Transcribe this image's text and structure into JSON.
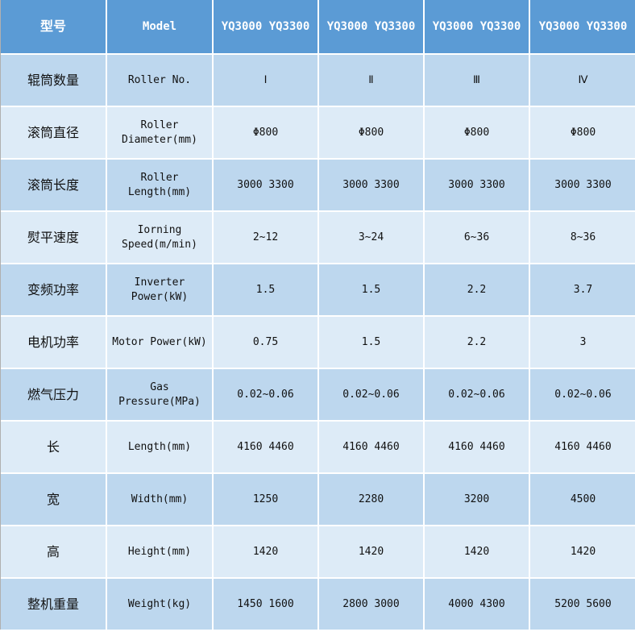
{
  "colors": {
    "header": "#5b9bd5",
    "row_dark": "#bdd7ee",
    "row_light": "#ddebf7"
  },
  "header": [
    "型号",
    "Model",
    "YQ3000 YQ3300",
    "YQ3000 YQ3300",
    "YQ3000 YQ3300",
    "YQ3000 YQ3300"
  ],
  "rows": [
    [
      "辊筒数量",
      "Roller No.",
      "Ⅰ",
      "Ⅱ",
      "Ⅲ",
      "Ⅳ"
    ],
    [
      "滚筒直径",
      "Roller\nDiameter(mm)",
      "Φ800",
      "Φ800",
      "Φ800",
      "Φ800"
    ],
    [
      "滚筒长度",
      "Roller\nLength(mm)",
      "3000 3300",
      "3000 3300",
      "3000 3300",
      "3000 3300"
    ],
    [
      "熨平速度",
      "Iorning\nSpeed(m/min)",
      "2~12",
      "3~24",
      "6~36",
      "8~36"
    ],
    [
      "变频功率",
      "Inverter\nPower(kW)",
      "1.5",
      "1.5",
      "2.2",
      "3.7"
    ],
    [
      "电机功率",
      "Motor Power(kW)",
      "0.75",
      "1.5",
      "2.2",
      "3"
    ],
    [
      "燃气压力",
      "Gas\nPressure(MPa)",
      "0.02~0.06",
      "0.02~0.06",
      "0.02~0.06",
      "0.02~0.06"
    ],
    [
      "长",
      "Length(mm)",
      "4160 4460",
      "4160 4460",
      "4160 4460",
      "4160 4460"
    ],
    [
      "宽",
      "Width(mm)",
      "1250",
      "2280",
      "3200",
      "4500"
    ],
    [
      "高",
      "Height(mm)",
      "1420",
      "1420",
      "1420",
      "1420"
    ],
    [
      "整机重量",
      "Weight(kg)",
      "1450 1600",
      "2800 3000",
      "4000 4300",
      "5200 5600"
    ]
  ]
}
